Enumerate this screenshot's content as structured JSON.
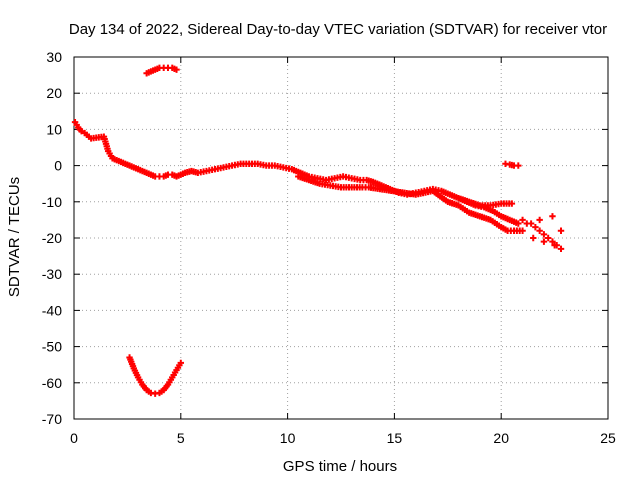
{
  "chart_data": {
    "type": "scatter",
    "title": "Day 134 of 2022, Sidereal Day-to-day VTEC variation (SDTVAR) for receiver vtor",
    "xlabel": "GPS time / hours",
    "ylabel": "SDTVAR / TECUs",
    "xlim": [
      0,
      25
    ],
    "ylim": [
      -70,
      30
    ],
    "xticks": [
      "0",
      "5",
      "10",
      "15",
      "20",
      "25"
    ],
    "yticks": [
      "30",
      "20",
      "10",
      "0",
      "-10",
      "-20",
      "-30",
      "-40",
      "-50",
      "-60",
      "-70"
    ],
    "grid": true,
    "marker": "plus",
    "color": "#ff0000",
    "series": [
      {
        "name": "main-trend",
        "x": [
          0.05,
          0.2,
          0.35,
          0.5,
          0.7,
          0.8,
          1.4,
          1.6,
          1.8,
          2.0,
          2.2,
          2.4,
          2.6,
          2.8,
          3.0,
          3.2,
          3.4,
          3.6,
          3.8,
          4.0,
          4.2,
          4.4,
          4.6,
          4.8,
          5.2,
          5.5,
          5.8,
          6.2,
          6.6,
          7.0,
          7.4,
          7.8,
          8.2,
          8.6,
          9.0,
          9.4,
          9.8,
          10.2,
          10.6,
          11.0,
          11.4,
          11.8,
          12.2,
          12.6,
          13.0,
          13.4,
          13.7,
          14.0,
          14.4,
          14.8,
          15.2,
          15.6,
          16.0,
          16.4,
          16.8,
          17.2,
          17.6,
          18.0,
          18.4,
          18.8,
          19.2,
          19.6,
          20.0,
          20.4,
          20.8
        ],
        "y": [
          12,
          10.5,
          9.5,
          9,
          8,
          7.5,
          8,
          4,
          2,
          1.5,
          1,
          0.5,
          0,
          -0.5,
          -1,
          -1.5,
          -2,
          -2.5,
          -3,
          -3,
          -3,
          -2.5,
          -2.5,
          -3,
          -2,
          -1.5,
          -2,
          -1.5,
          -1,
          -0.5,
          0,
          0.5,
          0.5,
          0.5,
          0,
          0,
          -0.5,
          -1,
          -2,
          -3,
          -3.5,
          -4,
          -3.5,
          -3,
          -3.5,
          -4,
          -4,
          -4.5,
          -5.5,
          -6.5,
          -7.5,
          -8,
          -7.5,
          -7,
          -6.5,
          -7,
          -8,
          -9,
          -10,
          -11,
          -11.5,
          -12.5,
          -14,
          -15,
          -16
        ]
      },
      {
        "name": "secondary-branch",
        "x": [
          10.5,
          11.0,
          11.5,
          12.0,
          12.5,
          13.0,
          13.5,
          13.8,
          16.0,
          16.8,
          17.5,
          18.0,
          18.5,
          19.0,
          19.5,
          20.0,
          20.3,
          20.6,
          21.0
        ],
        "y": [
          -3,
          -4,
          -5,
          -5.5,
          -6,
          -6,
          -6,
          -6,
          -8,
          -7,
          -10,
          -11,
          -13,
          -14,
          -15,
          -17,
          -18,
          -18,
          -18
        ]
      },
      {
        "name": "upper-branch",
        "x": [
          18.0,
          18.5,
          19.0,
          19.5,
          20.0,
          20.5
        ],
        "y": [
          -9,
          -10,
          -11,
          -11,
          -10.5,
          -10.5
        ]
      },
      {
        "name": "scatter-tail",
        "x": [
          21.0,
          21.4,
          21.6,
          21.8,
          22.0,
          22.2,
          22.4,
          22.6,
          22.8,
          21.5,
          22.0,
          22.5,
          22.8,
          21.2,
          21.8,
          22.4
        ],
        "y": [
          -15,
          -16,
          -17,
          -18,
          -19,
          -20,
          -21,
          -22,
          -23,
          -20,
          -21,
          -22,
          -18,
          -16,
          -15,
          -14
        ]
      },
      {
        "name": "isolated-20-6",
        "x": [
          20.2,
          20.4,
          20.6,
          20.8
        ],
        "y": [
          0.5,
          0.3,
          0,
          0
        ]
      },
      {
        "name": "isolated-top-arc",
        "x": [
          3.4,
          3.6,
          3.8,
          4.0,
          4.2,
          4.4,
          4.6,
          4.8
        ],
        "y": [
          25.5,
          26,
          26.5,
          27,
          27,
          27,
          27,
          26.5
        ]
      },
      {
        "name": "bottom-dip",
        "x": [
          2.6,
          2.8,
          3.0,
          3.2,
          3.4,
          3.6,
          3.8,
          4.0,
          4.2,
          4.4,
          4.6,
          4.8,
          5.0
        ],
        "y": [
          -53,
          -56,
          -58.5,
          -60.5,
          -62,
          -62.8,
          -63,
          -62.8,
          -62,
          -60.5,
          -58.5,
          -56.5,
          -54.5
        ]
      }
    ]
  }
}
